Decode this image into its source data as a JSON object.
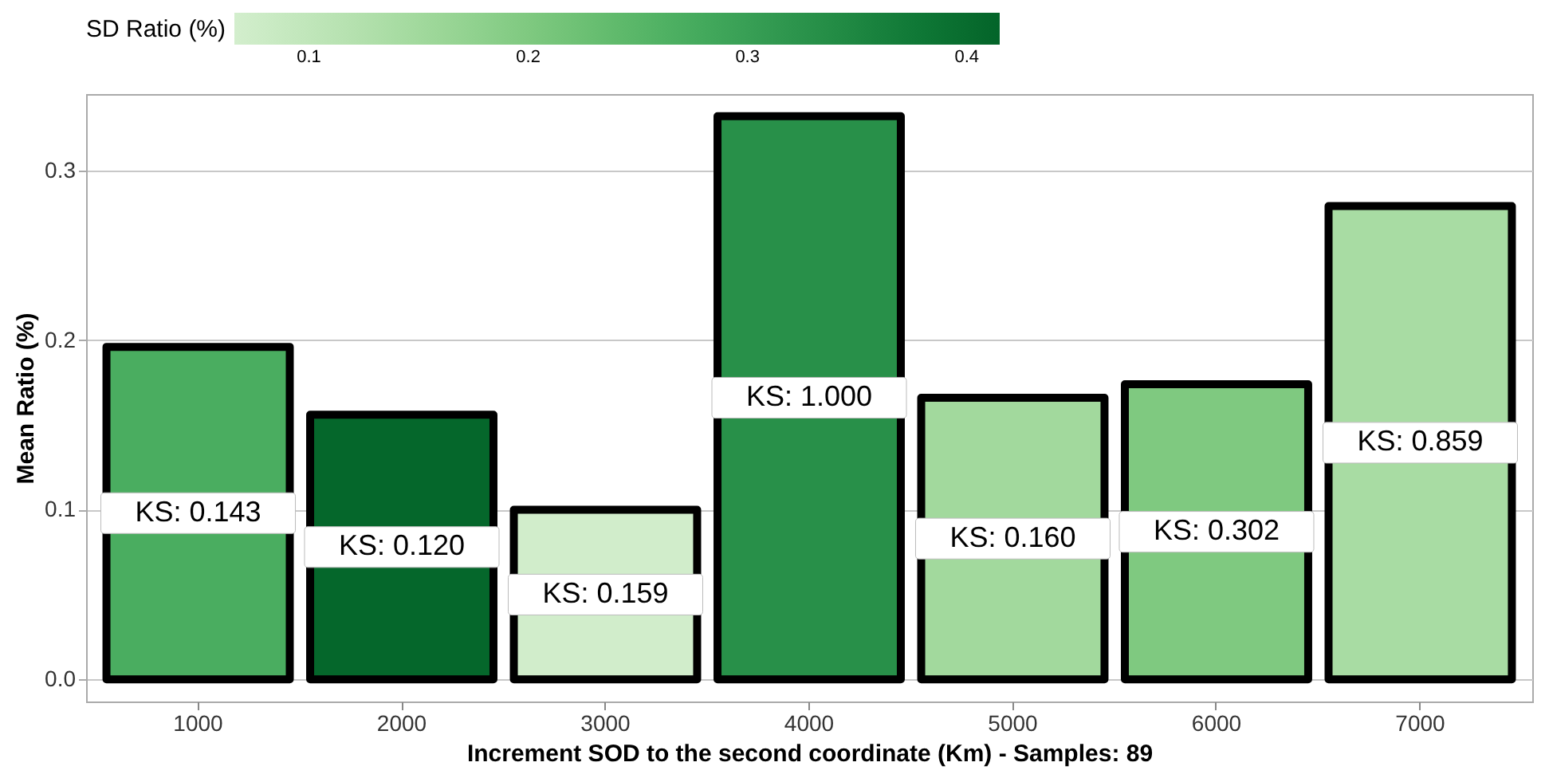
{
  "chart_data": {
    "type": "bar",
    "xlabel": "Increment SOD to the second coordinate (Km) - Samples: 89",
    "ylabel": "Mean Ratio (%)",
    "categories": [
      "1000",
      "2000",
      "3000",
      "4000",
      "5000",
      "6000",
      "7000"
    ],
    "values": [
      0.196,
      0.156,
      0.1,
      0.332,
      0.166,
      0.174,
      0.279
    ],
    "cvalues": [
      0.27,
      0.41,
      0.07,
      0.33,
      0.15,
      0.2,
      0.14
    ],
    "annotations": [
      "KS:  0.143",
      "KS:  0.120",
      "KS:  0.159",
      "KS:  1.000",
      "KS:  0.160",
      "KS:  0.302",
      "KS:  0.859"
    ],
    "clabel": "SD Ratio (%)",
    "clim": [
      0.066,
      0.415
    ],
    "cticks": [
      0.1,
      0.2,
      0.3,
      0.4
    ],
    "ylim": [
      -0.013,
      0.345
    ],
    "yticks": [
      {
        "value": 0,
        "label": "0.0"
      },
      {
        "value": 0.1,
        "label": "0.1"
      },
      {
        "value": 0.2,
        "label": "0.2"
      },
      {
        "value": 0.3,
        "label": "0.3"
      }
    ],
    "grid": "y"
  }
}
